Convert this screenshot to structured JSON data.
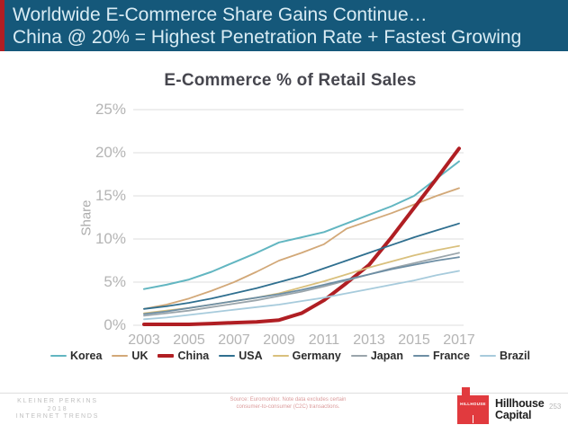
{
  "header": {
    "title_line1": "Worldwide E-Commerce Share Gains Continue…",
    "title_line2": "China @ 20% = Highest Penetration Rate + Fastest Growing",
    "background_color": "#15587A",
    "accent_color": "#B01E23"
  },
  "chart_data": {
    "type": "line",
    "title": "E-Commerce % of Retail Sales",
    "xlabel": "",
    "ylabel": "Share",
    "ylim": [
      0,
      25
    ],
    "grid": true,
    "legend_position": "bottom",
    "x": [
      2003,
      2004,
      2005,
      2006,
      2007,
      2008,
      2009,
      2010,
      2011,
      2012,
      2013,
      2014,
      2015,
      2016,
      2017
    ],
    "x_tick_labels": [
      "2003",
      "2005",
      "2007",
      "2009",
      "2011",
      "2013",
      "2015",
      "2017"
    ],
    "y_ticks": [
      25,
      20,
      15,
      10,
      5,
      0
    ],
    "y_tick_labels": [
      "25%",
      "20%",
      "15%",
      "10%",
      "5%",
      "0%"
    ],
    "series": [
      {
        "name": "Korea",
        "color": "#62B6C1",
        "width": 2,
        "values": [
          4.2,
          4.7,
          5.3,
          6.2,
          7.3,
          8.4,
          9.6,
          10.2,
          10.8,
          11.8,
          12.8,
          13.8,
          15.0,
          17.0,
          19.0
        ]
      },
      {
        "name": "UK",
        "color": "#D2A878",
        "width": 1.8,
        "values": [
          1.9,
          2.4,
          3.1,
          4.0,
          5.0,
          6.2,
          7.5,
          8.4,
          9.4,
          11.2,
          12.1,
          13.0,
          14.0,
          15.0,
          15.9
        ]
      },
      {
        "name": "China",
        "color": "#B01E23",
        "width": 4,
        "values": [
          0.1,
          0.1,
          0.1,
          0.2,
          0.3,
          0.4,
          0.6,
          1.4,
          2.9,
          4.9,
          7.0,
          10.2,
          13.6,
          17.0,
          20.5
        ]
      },
      {
        "name": "USA",
        "color": "#2F6F8F",
        "width": 1.8,
        "values": [
          1.9,
          2.2,
          2.6,
          3.1,
          3.7,
          4.3,
          5.0,
          5.7,
          6.6,
          7.5,
          8.4,
          9.3,
          10.2,
          11.0,
          11.8
        ]
      },
      {
        "name": "Germany",
        "color": "#D9C07D",
        "width": 1.8,
        "values": [
          1.4,
          1.7,
          2.0,
          2.4,
          2.8,
          3.2,
          3.7,
          4.4,
          5.1,
          5.9,
          6.7,
          7.4,
          8.1,
          8.7,
          9.2
        ]
      },
      {
        "name": "Japan",
        "color": "#9AA5AB",
        "width": 1.8,
        "values": [
          1.1,
          1.4,
          1.7,
          2.1,
          2.5,
          2.9,
          3.4,
          3.9,
          4.5,
          5.2,
          5.9,
          6.6,
          7.2,
          7.8,
          8.4
        ]
      },
      {
        "name": "France",
        "color": "#6D8EA4",
        "width": 1.8,
        "values": [
          1.3,
          1.6,
          2.0,
          2.4,
          2.8,
          3.2,
          3.6,
          4.1,
          4.7,
          5.3,
          5.9,
          6.5,
          7.0,
          7.5,
          7.9
        ]
      },
      {
        "name": "Brazil",
        "color": "#A7CBDC",
        "width": 1.8,
        "values": [
          0.7,
          0.9,
          1.2,
          1.5,
          1.8,
          2.1,
          2.4,
          2.8,
          3.2,
          3.7,
          4.2,
          4.7,
          5.2,
          5.8,
          6.3
        ]
      }
    ]
  },
  "footer": {
    "source_line1": "Source: Euromonitor. Note data excludes certain",
    "source_line2": "consumer-to-consumer (C2C) transactions.",
    "brand_line1": "KLEINER PERKINS",
    "brand_line2": "2018",
    "brand_line3": "INTERNET TRENDS",
    "partner_logo_text": "HILLHOUSE",
    "partner_logo_color": "#E13A3E",
    "partner_name_line1": "Hillhouse",
    "partner_name_line2": "Capital",
    "page_number": "253"
  }
}
